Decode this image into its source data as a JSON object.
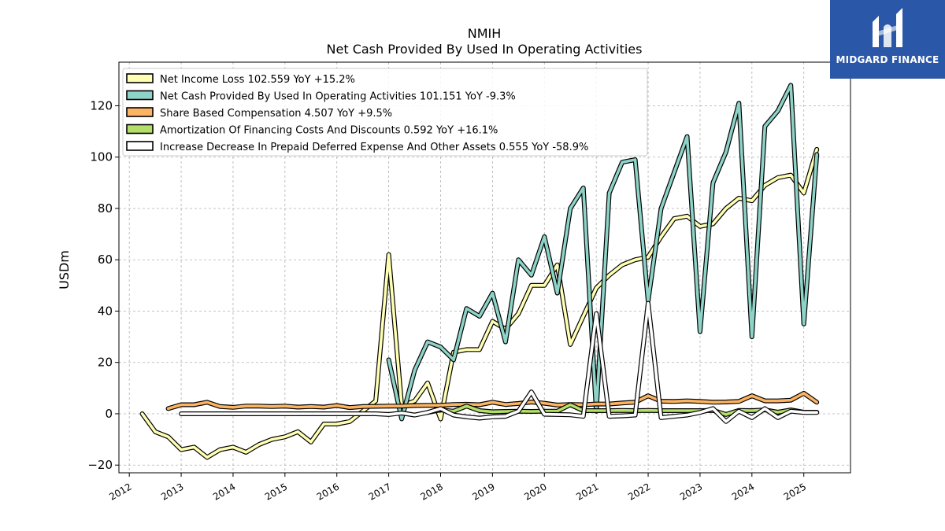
{
  "brand": {
    "name": "MIDGARD FINANCE",
    "bg_color": "#2b57a8"
  },
  "chart_data": {
    "type": "line",
    "title": "NMIH",
    "subtitle": "Net Cash Provided By Used In Operating Activities",
    "ylabel": "USDm",
    "xlabel": "",
    "xlim": [
      2011.8,
      2025.9
    ],
    "ylim": [
      -23,
      137
    ],
    "x_ticks": [
      "2012",
      "2013",
      "2014",
      "2015",
      "2016",
      "2017",
      "2018",
      "2019",
      "2020",
      "2021",
      "2022",
      "2023",
      "2024",
      "2025"
    ],
    "y_ticks": [
      -20,
      0,
      20,
      40,
      60,
      80,
      100,
      120
    ],
    "grid": true,
    "legend_position": "top-left",
    "series": [
      {
        "name": "Net Income Loss",
        "legend": "Net Income Loss  102.559 YoY +15.2%",
        "color": "#ffffb3",
        "x": [
          2012.25,
          2012.5,
          2012.75,
          2013.0,
          2013.25,
          2013.5,
          2013.75,
          2014.0,
          2014.25,
          2014.5,
          2014.75,
          2015.0,
          2015.25,
          2015.5,
          2015.75,
          2016.0,
          2016.25,
          2016.5,
          2016.75,
          2017.0,
          2017.25,
          2017.5,
          2017.75,
          2018.0,
          2018.25,
          2018.5,
          2018.75,
          2019.0,
          2019.25,
          2019.5,
          2019.75,
          2020.0,
          2020.25,
          2020.5,
          2020.75,
          2021.0,
          2021.25,
          2021.5,
          2021.75,
          2022.0,
          2022.25,
          2022.5,
          2022.75,
          2023.0,
          2023.25,
          2023.5,
          2023.75,
          2024.0,
          2024.25,
          2024.5,
          2024.75,
          2025.0,
          2025.25
        ],
        "y": [
          0,
          -7,
          -9,
          -14,
          -13,
          -17,
          -14,
          -13,
          -15,
          -12,
          -10,
          -9,
          -7,
          -11,
          -4,
          -4,
          -3,
          1,
          5,
          62,
          3,
          5,
          12,
          -2,
          24,
          25,
          25,
          36,
          33,
          39,
          50,
          50,
          58,
          27,
          38,
          49,
          54,
          58,
          60,
          61,
          69,
          76,
          77,
          73,
          74,
          80,
          84,
          83,
          89,
          92,
          93,
          86,
          103
        ]
      },
      {
        "name": "Net Cash Provided By Used In Operating Activities",
        "legend": "Net Cash Provided By Used In Operating Activities  101.151 YoY -9.3%",
        "color": "#8dd3c7",
        "x": [
          2017.0,
          2017.25,
          2017.5,
          2017.75,
          2018.0,
          2018.25,
          2018.5,
          2018.75,
          2019.0,
          2019.25,
          2019.5,
          2019.75,
          2020.0,
          2020.25,
          2020.5,
          2020.75,
          2021.0,
          2021.25,
          2021.5,
          2021.75,
          2022.0,
          2022.25,
          2022.5,
          2022.75,
          2023.0,
          2023.25,
          2023.5,
          2023.75,
          2024.0,
          2024.25,
          2024.5,
          2024.75,
          2025.0,
          2025.25
        ],
        "y": [
          21,
          -2,
          17,
          28,
          26,
          21,
          41,
          38,
          47,
          28,
          60,
          54,
          69,
          47,
          80,
          88,
          1,
          86,
          98,
          99,
          44,
          80,
          94,
          108,
          32,
          90,
          102,
          121,
          30,
          112,
          118,
          128,
          35,
          101
        ]
      },
      {
        "name": "Share Based Compensation",
        "legend": "Share Based Compensation  4.507 YoY +9.5%",
        "color": "#fdb462",
        "x": [
          2012.75,
          2013.0,
          2013.25,
          2013.5,
          2013.75,
          2014.0,
          2014.25,
          2014.5,
          2014.75,
          2015.0,
          2015.25,
          2015.5,
          2015.75,
          2016.0,
          2016.25,
          2016.5,
          2016.75,
          2017.0,
          2017.25,
          2017.5,
          2017.75,
          2018.0,
          2018.25,
          2018.5,
          2018.75,
          2019.0,
          2019.25,
          2019.5,
          2019.75,
          2020.0,
          2020.25,
          2020.5,
          2020.75,
          2021.0,
          2021.25,
          2021.5,
          2021.75,
          2022.0,
          2022.25,
          2022.5,
          2022.75,
          2023.0,
          2023.25,
          2023.5,
          2023.75,
          2024.0,
          2024.25,
          2024.5,
          2024.75,
          2025.0,
          2025.25
        ],
        "y": [
          2,
          3.5,
          3.5,
          4.5,
          2.8,
          2.5,
          3,
          3,
          2.8,
          3,
          2.6,
          2.8,
          2.6,
          3.2,
          2.4,
          2.8,
          2.9,
          3,
          3,
          3.2,
          3.3,
          3.3,
          3.6,
          3.7,
          3.5,
          4.5,
          3.6,
          4,
          4.6,
          4.1,
          3.4,
          3.6,
          3.5,
          3.8,
          3.8,
          4.2,
          4.5,
          7,
          4.9,
          4.8,
          5,
          4.8,
          4.5,
          4.6,
          4.8,
          7,
          5,
          5,
          5.3,
          8,
          4.5
        ]
      },
      {
        "name": "Amortization Of Financing Costs And Discounts",
        "legend": "Amortization Of Financing Costs And Discounts  0.592 YoY +16.1%",
        "color": "#b3de69",
        "x": [
          2017.75,
          2018.0,
          2018.25,
          2018.5,
          2018.75,
          2019.0,
          2019.25,
          2019.5,
          2019.75,
          2020.0,
          2020.25,
          2020.5,
          2020.75,
          2021.0,
          2021.25,
          2021.5,
          2021.75,
          2022.0,
          2022.25,
          2022.5,
          2022.75,
          2023.0,
          2023.25,
          2023.5,
          2023.75,
          2024.0,
          2024.25,
          2024.5,
          2024.75,
          2025.0,
          2025.25
        ],
        "y": [
          0.5,
          1.5,
          1,
          3,
          1.2,
          0.8,
          0.9,
          1,
          0.9,
          1,
          1,
          3.5,
          1.2,
          1.2,
          1.2,
          1.3,
          1.2,
          1.3,
          1.2,
          1.2,
          1.2,
          1.2,
          1.3,
          -0.3,
          1.3,
          1.2,
          1.5,
          0.6,
          1.5,
          0.6,
          0.6
        ]
      },
      {
        "name": "Increase Decrease In Prepaid Deferred Expense And Other Assets",
        "legend": "Increase Decrease In Prepaid Deferred Expense And Other Assets  0.555 YoY -58.9%",
        "color": "#ffffff",
        "x": [
          2013.0,
          2013.25,
          2013.5,
          2013.75,
          2014.0,
          2014.25,
          2014.5,
          2014.75,
          2015.0,
          2015.25,
          2015.5,
          2015.75,
          2016.0,
          2016.25,
          2016.5,
          2016.75,
          2017.0,
          2017.25,
          2017.5,
          2017.75,
          2018.0,
          2018.25,
          2018.5,
          2018.75,
          2019.0,
          2019.25,
          2019.5,
          2019.75,
          2020.0,
          2020.25,
          2020.5,
          2020.75,
          2021.0,
          2021.25,
          2021.5,
          2021.75,
          2022.0,
          2022.25,
          2022.5,
          2022.75,
          2023.0,
          2023.25,
          2023.5,
          2023.75,
          2024.0,
          2024.25,
          2024.5,
          2024.75,
          2025.0,
          2025.25
        ],
        "y": [
          0,
          0,
          0,
          0,
          0,
          0,
          0,
          0,
          0,
          0,
          0,
          0,
          0,
          0,
          0,
          0,
          -0.3,
          0.3,
          -0.5,
          0.5,
          2,
          -0.5,
          -1.2,
          -1.7,
          -1.2,
          -1,
          1,
          8.5,
          -0.2,
          -0.3,
          -0.4,
          -1,
          39,
          -1,
          -0.8,
          -0.5,
          43,
          -1.5,
          -1,
          -0.5,
          0.5,
          2,
          -3,
          1,
          -1.5,
          2,
          -1.5,
          1,
          0.5,
          0.5
        ]
      }
    ]
  }
}
